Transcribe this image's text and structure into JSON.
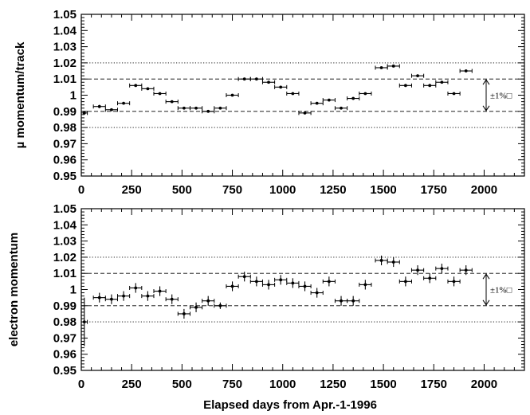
{
  "chart_data": [
    {
      "type": "scatter",
      "ylabel": "µ momentum/track",
      "xlabel": "",
      "xlim": [
        0,
        2200
      ],
      "ylim": [
        0.95,
        1.05
      ],
      "x_ticks": [
        0,
        250,
        500,
        750,
        1000,
        1250,
        1500,
        1750,
        2000
      ],
      "y_ticks": [
        0.95,
        0.96,
        0.97,
        0.98,
        0.99,
        1,
        1.01,
        1.02,
        1.03,
        1.04,
        1.05
      ],
      "x_tick_labels": [
        "0",
        "250",
        "500",
        "750",
        "1000",
        "1250",
        "1500",
        "1750",
        "2000"
      ],
      "y_tick_labels": [
        "0.95",
        "0.96",
        "0.97",
        "0.98",
        "0.99",
        "1",
        "1.01",
        "1.02",
        "1.03",
        "1.04",
        "1.05"
      ],
      "reference_lines": [
        {
          "y": 1.02,
          "style": "dotted"
        },
        {
          "y": 1.01,
          "style": "dashed"
        },
        {
          "y": 0.99,
          "style": "dashed"
        },
        {
          "y": 0.98,
          "style": "dotted"
        }
      ],
      "annotation": {
        "text": "±1%□",
        "from": 0.99,
        "to": 1.01
      },
      "points": [
        {
          "x": 15,
          "xerr": 15,
          "y": 0.989,
          "yerr": 0.001
        },
        {
          "x": 90,
          "xerr": 30,
          "y": 0.993,
          "yerr": 0.001
        },
        {
          "x": 150,
          "xerr": 30,
          "y": 0.991,
          "yerr": 0.0005
        },
        {
          "x": 210,
          "xerr": 30,
          "y": 0.995,
          "yerr": 0.0005
        },
        {
          "x": 270,
          "xerr": 30,
          "y": 1.006,
          "yerr": 0.0005
        },
        {
          "x": 330,
          "xerr": 30,
          "y": 1.004,
          "yerr": 0.0005
        },
        {
          "x": 390,
          "xerr": 30,
          "y": 1.001,
          "yerr": 0.0005
        },
        {
          "x": 450,
          "xerr": 30,
          "y": 0.996,
          "yerr": 0.0005
        },
        {
          "x": 510,
          "xerr": 30,
          "y": 0.992,
          "yerr": 0.0005
        },
        {
          "x": 570,
          "xerr": 30,
          "y": 0.992,
          "yerr": 0.0005
        },
        {
          "x": 630,
          "xerr": 30,
          "y": 0.99,
          "yerr": 0.0005
        },
        {
          "x": 690,
          "xerr": 30,
          "y": 0.992,
          "yerr": 0.0005
        },
        {
          "x": 750,
          "xerr": 30,
          "y": 1.0,
          "yerr": 0.0005
        },
        {
          "x": 810,
          "xerr": 30,
          "y": 1.01,
          "yerr": 0.0005
        },
        {
          "x": 870,
          "xerr": 30,
          "y": 1.01,
          "yerr": 0.0005
        },
        {
          "x": 930,
          "xerr": 30,
          "y": 1.008,
          "yerr": 0.0005
        },
        {
          "x": 990,
          "xerr": 30,
          "y": 1.005,
          "yerr": 0.0005
        },
        {
          "x": 1050,
          "xerr": 30,
          "y": 1.001,
          "yerr": 0.0005
        },
        {
          "x": 1110,
          "xerr": 30,
          "y": 0.989,
          "yerr": 0.0005
        },
        {
          "x": 1170,
          "xerr": 30,
          "y": 0.995,
          "yerr": 0.0005
        },
        {
          "x": 1230,
          "xerr": 30,
          "y": 0.997,
          "yerr": 0.0005
        },
        {
          "x": 1290,
          "xerr": 30,
          "y": 0.992,
          "yerr": 0.0005
        },
        {
          "x": 1350,
          "xerr": 30,
          "y": 0.998,
          "yerr": 0.0005
        },
        {
          "x": 1410,
          "xerr": 30,
          "y": 1.001,
          "yerr": 0.0005
        },
        {
          "x": 1490,
          "xerr": 30,
          "y": 1.017,
          "yerr": 0.0005
        },
        {
          "x": 1550,
          "xerr": 30,
          "y": 1.018,
          "yerr": 0.0005
        },
        {
          "x": 1610,
          "xerr": 30,
          "y": 1.006,
          "yerr": 0.0005
        },
        {
          "x": 1670,
          "xerr": 30,
          "y": 1.012,
          "yerr": 0.0005
        },
        {
          "x": 1730,
          "xerr": 30,
          "y": 1.006,
          "yerr": 0.0005
        },
        {
          "x": 1790,
          "xerr": 30,
          "y": 1.008,
          "yerr": 0.0005
        },
        {
          "x": 1850,
          "xerr": 30,
          "y": 1.001,
          "yerr": 0.0005
        },
        {
          "x": 1910,
          "xerr": 30,
          "y": 1.015,
          "yerr": 0.0005
        }
      ]
    },
    {
      "type": "scatter",
      "ylabel": "electron momentum",
      "xlabel": "Elapsed days from Apr.-1-1996",
      "xlim": [
        0,
        2200
      ],
      "ylim": [
        0.95,
        1.05
      ],
      "x_ticks": [
        0,
        250,
        500,
        750,
        1000,
        1250,
        1500,
        1750,
        2000
      ],
      "y_ticks": [
        0.95,
        0.96,
        0.97,
        0.98,
        0.99,
        1,
        1.01,
        1.02,
        1.03,
        1.04,
        1.05
      ],
      "x_tick_labels": [
        "0",
        "250",
        "500",
        "750",
        "1000",
        "1250",
        "1500",
        "1750",
        "2000"
      ],
      "y_tick_labels": [
        "0.95",
        "0.96",
        "0.97",
        "0.98",
        "0.99",
        "1",
        "1.01",
        "1.02",
        "1.03",
        "1.04",
        "1.05"
      ],
      "reference_lines": [
        {
          "y": 1.02,
          "style": "dotted"
        },
        {
          "y": 1.01,
          "style": "dashed"
        },
        {
          "y": 0.99,
          "style": "dashed"
        },
        {
          "y": 0.98,
          "style": "dotted"
        }
      ],
      "annotation": {
        "text": "±1%□",
        "from": 0.99,
        "to": 1.01
      },
      "points": [
        {
          "x": 15,
          "xerr": 15,
          "y": 0.98,
          "yerr": 0.015
        },
        {
          "x": 90,
          "xerr": 30,
          "y": 0.995,
          "yerr": 0.003
        },
        {
          "x": 150,
          "xerr": 30,
          "y": 0.994,
          "yerr": 0.003
        },
        {
          "x": 210,
          "xerr": 30,
          "y": 0.996,
          "yerr": 0.003
        },
        {
          "x": 270,
          "xerr": 30,
          "y": 1.001,
          "yerr": 0.003
        },
        {
          "x": 330,
          "xerr": 30,
          "y": 0.996,
          "yerr": 0.003
        },
        {
          "x": 390,
          "xerr": 30,
          "y": 0.999,
          "yerr": 0.003
        },
        {
          "x": 450,
          "xerr": 30,
          "y": 0.994,
          "yerr": 0.003
        },
        {
          "x": 510,
          "xerr": 30,
          "y": 0.985,
          "yerr": 0.003
        },
        {
          "x": 570,
          "xerr": 30,
          "y": 0.989,
          "yerr": 0.003
        },
        {
          "x": 630,
          "xerr": 30,
          "y": 0.993,
          "yerr": 0.003
        },
        {
          "x": 690,
          "xerr": 30,
          "y": 0.99,
          "yerr": 0.002
        },
        {
          "x": 750,
          "xerr": 30,
          "y": 1.002,
          "yerr": 0.003
        },
        {
          "x": 810,
          "xerr": 30,
          "y": 1.008,
          "yerr": 0.003
        },
        {
          "x": 870,
          "xerr": 30,
          "y": 1.005,
          "yerr": 0.003
        },
        {
          "x": 930,
          "xerr": 30,
          "y": 1.003,
          "yerr": 0.003
        },
        {
          "x": 990,
          "xerr": 30,
          "y": 1.006,
          "yerr": 0.003
        },
        {
          "x": 1050,
          "xerr": 30,
          "y": 1.004,
          "yerr": 0.003
        },
        {
          "x": 1110,
          "xerr": 30,
          "y": 1.002,
          "yerr": 0.003
        },
        {
          "x": 1170,
          "xerr": 30,
          "y": 0.998,
          "yerr": 0.003
        },
        {
          "x": 1230,
          "xerr": 30,
          "y": 1.005,
          "yerr": 0.003
        },
        {
          "x": 1290,
          "xerr": 30,
          "y": 0.993,
          "yerr": 0.003
        },
        {
          "x": 1350,
          "xerr": 30,
          "y": 0.993,
          "yerr": 0.003
        },
        {
          "x": 1410,
          "xerr": 30,
          "y": 1.003,
          "yerr": 0.003
        },
        {
          "x": 1490,
          "xerr": 30,
          "y": 1.018,
          "yerr": 0.003
        },
        {
          "x": 1550,
          "xerr": 30,
          "y": 1.017,
          "yerr": 0.003
        },
        {
          "x": 1610,
          "xerr": 30,
          "y": 1.005,
          "yerr": 0.003
        },
        {
          "x": 1670,
          "xerr": 30,
          "y": 1.012,
          "yerr": 0.003
        },
        {
          "x": 1730,
          "xerr": 30,
          "y": 1.007,
          "yerr": 0.003
        },
        {
          "x": 1790,
          "xerr": 30,
          "y": 1.013,
          "yerr": 0.003
        },
        {
          "x": 1850,
          "xerr": 30,
          "y": 1.005,
          "yerr": 0.003
        },
        {
          "x": 1910,
          "xerr": 30,
          "y": 1.012,
          "yerr": 0.003
        }
      ]
    }
  ]
}
